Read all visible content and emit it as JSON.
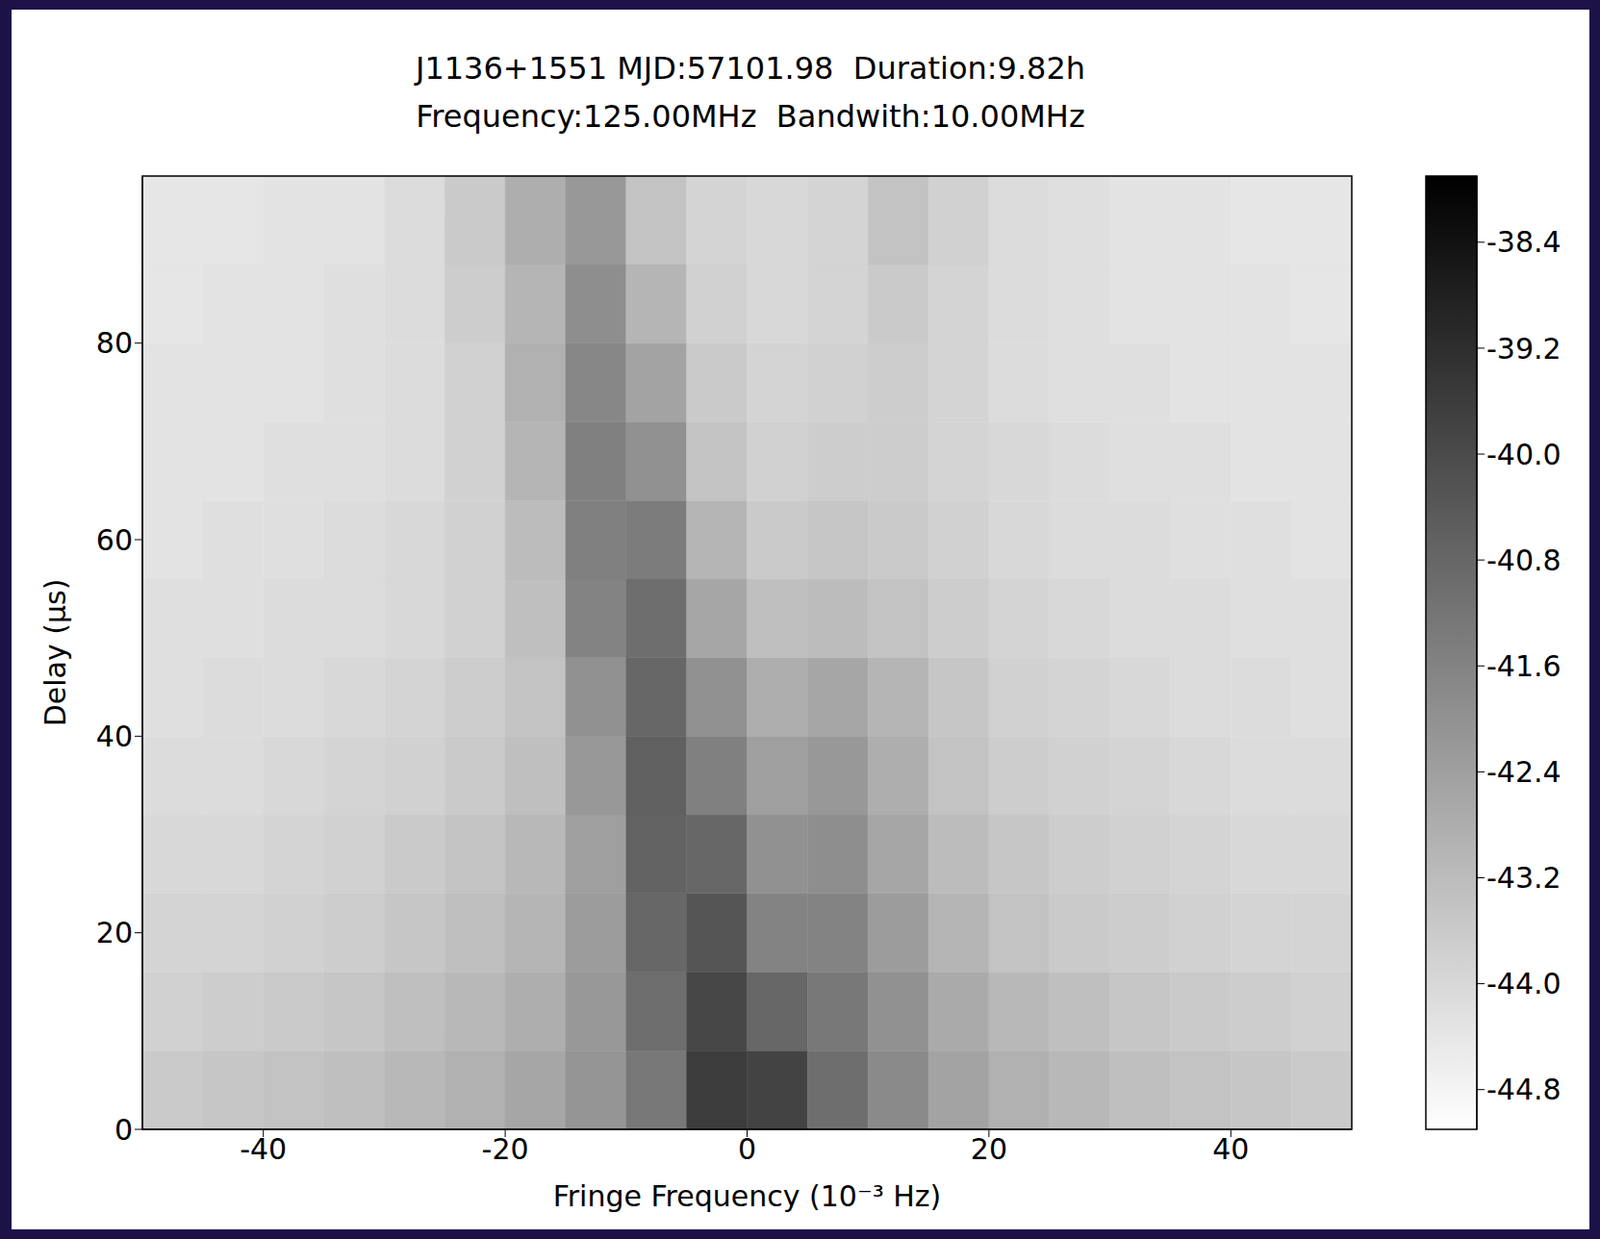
{
  "chart_data": {
    "type": "heatmap",
    "title": "J1136+1551 MJD:57101.98  Duration:9.82h",
    "subtitle": "Frequency:125.00MHz  Bandwith:10.00MHz",
    "x_label": "Fringe Frequency (10⁻³ Hz)",
    "y_label": "Delay (μs)",
    "xlim": [
      -50,
      50
    ],
    "xticks": [
      -40,
      -20,
      0,
      20,
      40
    ],
    "ylim": [
      0,
      97
    ],
    "yticks": [
      0,
      20,
      40,
      60,
      80
    ],
    "grid": false,
    "color": "gray_r",
    "x_edges": [
      -50,
      -45,
      -40,
      -35,
      -30,
      -25,
      -20,
      -15,
      -10,
      -5,
      0,
      5,
      10,
      15,
      20,
      25,
      30,
      35,
      40,
      45,
      50
    ],
    "y_edges": [
      0,
      8,
      16,
      24,
      32,
      40,
      48,
      56,
      64,
      72,
      80,
      88,
      97
    ],
    "cells": [
      [
        -43.6,
        -43.5,
        -43.4,
        -43.3,
        -43.1,
        -42.9,
        -42.6,
        -42.1,
        -41.3,
        -39.6,
        -39.8,
        -41.0,
        -41.8,
        -42.5,
        -42.9,
        -43.1,
        -43.3,
        -43.4,
        -43.5,
        -43.6
      ],
      [
        -43.8,
        -43.7,
        -43.6,
        -43.5,
        -43.3,
        -43.1,
        -42.8,
        -42.2,
        -41.0,
        -39.9,
        -40.8,
        -41.3,
        -42.0,
        -42.7,
        -43.1,
        -43.3,
        -43.5,
        -43.6,
        -43.7,
        -43.8
      ],
      [
        -43.9,
        -43.9,
        -43.8,
        -43.7,
        -43.5,
        -43.3,
        -43.0,
        -42.3,
        -40.8,
        -40.3,
        -41.6,
        -41.6,
        -42.3,
        -43.0,
        -43.4,
        -43.6,
        -43.7,
        -43.8,
        -43.9,
        -43.9
      ],
      [
        -44.0,
        -44.0,
        -43.9,
        -43.8,
        -43.6,
        -43.4,
        -43.1,
        -42.4,
        -40.7,
        -40.8,
        -42.0,
        -41.9,
        -42.6,
        -43.2,
        -43.5,
        -43.7,
        -43.8,
        -43.9,
        -44.0,
        -44.0
      ],
      [
        -44.1,
        -44.1,
        -44.0,
        -43.9,
        -43.8,
        -43.6,
        -43.3,
        -42.2,
        -40.6,
        -41.5,
        -42.4,
        -42.2,
        -42.8,
        -43.4,
        -43.7,
        -43.8,
        -43.9,
        -44.0,
        -44.1,
        -44.1
      ],
      [
        -44.2,
        -44.1,
        -44.1,
        -44.0,
        -43.9,
        -43.7,
        -43.4,
        -42.0,
        -40.8,
        -42.0,
        -42.8,
        -42.6,
        -43.0,
        -43.5,
        -43.8,
        -43.9,
        -44.0,
        -44.1,
        -44.1,
        -44.2
      ],
      [
        -44.2,
        -44.2,
        -44.1,
        -44.1,
        -44.0,
        -43.8,
        -43.3,
        -41.6,
        -41.0,
        -42.6,
        -43.3,
        -43.2,
        -43.4,
        -43.7,
        -43.9,
        -44.0,
        -44.1,
        -44.1,
        -44.2,
        -44.2
      ],
      [
        -44.3,
        -44.2,
        -44.2,
        -44.1,
        -44.0,
        -43.8,
        -43.2,
        -41.5,
        -41.4,
        -43.0,
        -43.6,
        -43.5,
        -43.6,
        -43.8,
        -44.0,
        -44.1,
        -44.1,
        -44.2,
        -44.2,
        -44.3
      ],
      [
        -44.3,
        -44.3,
        -44.2,
        -44.2,
        -44.1,
        -43.8,
        -43.0,
        -41.5,
        -42.0,
        -43.4,
        -43.8,
        -43.7,
        -43.7,
        -43.9,
        -44.0,
        -44.1,
        -44.2,
        -44.2,
        -44.3,
        -44.3
      ],
      [
        -44.3,
        -44.3,
        -44.3,
        -44.2,
        -44.1,
        -43.8,
        -42.9,
        -41.7,
        -42.5,
        -43.6,
        -43.9,
        -43.8,
        -43.7,
        -43.9,
        -44.1,
        -44.2,
        -44.2,
        -44.3,
        -44.3,
        -44.3
      ],
      [
        -44.4,
        -44.3,
        -44.3,
        -44.2,
        -44.1,
        -43.7,
        -43.0,
        -41.9,
        -43.0,
        -43.8,
        -44.0,
        -43.9,
        -43.6,
        -43.9,
        -44.1,
        -44.2,
        -44.3,
        -44.3,
        -44.3,
        -44.4
      ],
      [
        -44.4,
        -44.4,
        -44.3,
        -44.3,
        -44.1,
        -43.6,
        -42.8,
        -42.2,
        -43.4,
        -43.9,
        -44.0,
        -43.9,
        -43.4,
        -43.8,
        -44.1,
        -44.2,
        -44.3,
        -44.3,
        -44.4,
        -44.4
      ]
    ],
    "colorbar": {
      "range": [
        -45.1,
        -37.9
      ],
      "ticks": [
        -38.4,
        -39.2,
        {
          "value": -40,
          "label": "-40.0"
        },
        -40.8,
        -41.6,
        -42.4,
        -43.2,
        {
          "value": -44,
          "label": "-44.0"
        },
        -44.8
      ]
    }
  }
}
